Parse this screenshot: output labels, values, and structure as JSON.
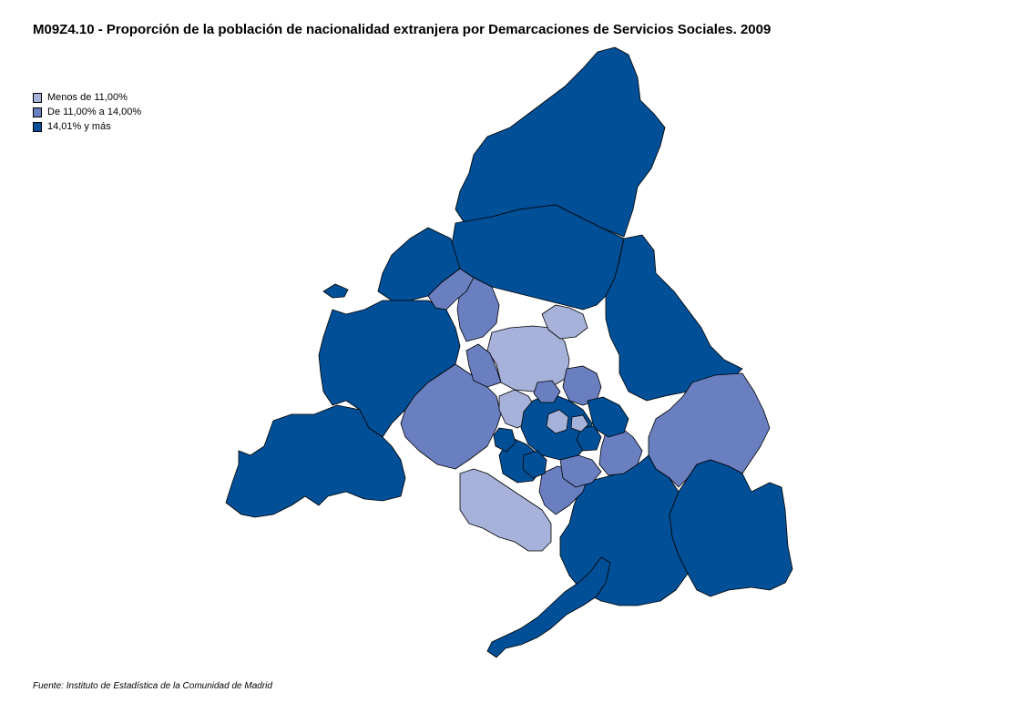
{
  "title": "M09Z4.10 - Proporción de la población de nacionalidad extranjera por Demarcaciones de Servicios Sociales. 2009",
  "legend": {
    "items": [
      {
        "label": "Menos de 11,00%",
        "color": "#a7b2da"
      },
      {
        "label": "De 11,00% a 14,00%",
        "color": "#6a7fc0"
      },
      {
        "label": "14,01% y más",
        "color": "#014f96"
      }
    ]
  },
  "source": "Fuente: Instituto de Estadística de la Comunidad de Madrid",
  "map": {
    "regions": [
      {
        "id": "north-sierra",
        "class": 2
      },
      {
        "id": "north-central",
        "class": 2
      },
      {
        "id": "north-west",
        "class": 2
      },
      {
        "id": "west",
        "class": 2
      },
      {
        "id": "south-west",
        "class": 2
      },
      {
        "id": "west-isolate",
        "class": 2
      },
      {
        "id": "north-east",
        "class": 2
      },
      {
        "id": "east",
        "class": 1
      },
      {
        "id": "south-east",
        "class": 2
      },
      {
        "id": "south",
        "class": 2
      },
      {
        "id": "south-tail",
        "class": 2
      },
      {
        "id": "west-metro",
        "class": 1
      },
      {
        "id": "north-metro-large",
        "class": 0
      },
      {
        "id": "north-metro-small",
        "class": 0
      },
      {
        "id": "north-metro-mid",
        "class": 1
      },
      {
        "id": "south-metro-low",
        "class": 0
      },
      {
        "id": "south-metro-mid",
        "class": 1
      },
      {
        "id": "east-metro",
        "class": 1
      },
      {
        "id": "north-west-metro",
        "class": 1
      },
      {
        "id": "north-west-small",
        "class": 1
      },
      {
        "id": "core-west",
        "class": 0
      },
      {
        "id": "core-north",
        "class": 1
      },
      {
        "id": "core-center",
        "class": 2
      },
      {
        "id": "core-east",
        "class": 2
      },
      {
        "id": "core-south",
        "class": 2
      },
      {
        "id": "core-south-east",
        "class": 1
      },
      {
        "id": "core-mid",
        "class": 0
      },
      {
        "id": "inner-a",
        "class": 2
      },
      {
        "id": "inner-b",
        "class": 2
      },
      {
        "id": "inner-c",
        "class": 1
      },
      {
        "id": "inner-d",
        "class": 2
      },
      {
        "id": "inner-e",
        "class": 0
      }
    ]
  }
}
